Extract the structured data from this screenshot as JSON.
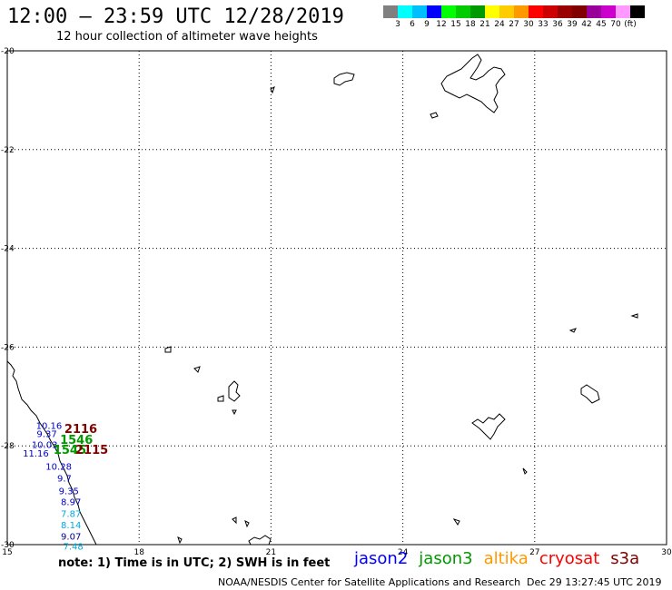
{
  "title": "12:00 – 23:59 UTC 12/28/2019",
  "subtitle": "12 hour collection of altimeter wave heights",
  "colorbar": {
    "colors": [
      "#808080",
      "#00ffff",
      "#00bfff",
      "#0000ff",
      "#00ff00",
      "#00cc00",
      "#009900",
      "#ffff00",
      "#ffcc00",
      "#ff9900",
      "#ff0000",
      "#cc0000",
      "#990000",
      "#800000",
      "#990099",
      "#cc00cc",
      "#ff99ff",
      "#000000"
    ],
    "labels": [
      "3",
      "6",
      "9",
      "12",
      "15",
      "18",
      "21",
      "24",
      "27",
      "30",
      "33",
      "36",
      "39",
      "42",
      "45",
      "70",
      "(ft)"
    ]
  },
  "map": {
    "lon_range": [
      15,
      30
    ],
    "lat_range": [
      -30,
      -20
    ],
    "lon_ticks": [
      "15",
      "18",
      "21",
      "24",
      "27",
      "30"
    ],
    "lat_ticks": [
      "-20",
      "-22",
      "-24",
      "-26",
      "-28",
      "-30"
    ]
  },
  "observations": [
    {
      "value": "10.16",
      "color": "#0000cc",
      "lon": 15.95,
      "lat": -27.66
    },
    {
      "value": "9.37",
      "color": "#0000cc",
      "lon": 15.9,
      "lat": -27.82
    },
    {
      "value": "10.03",
      "color": "#0000cc",
      "lon": 15.85,
      "lat": -28.04
    },
    {
      "value": "11.16",
      "color": "#0000cc",
      "lon": 15.65,
      "lat": -28.22
    },
    {
      "value": "10.28",
      "color": "#0000cc",
      "lon": 16.17,
      "lat": -28.48
    },
    {
      "value": "9.7",
      "color": "#0000cc",
      "lon": 16.3,
      "lat": -28.72
    },
    {
      "value": "9.35",
      "color": "#0000cc",
      "lon": 16.4,
      "lat": -28.98
    },
    {
      "value": "8.97",
      "color": "#0000cc",
      "lon": 16.45,
      "lat": -29.2
    },
    {
      "value": "7.87",
      "color": "#00aadd",
      "lon": 16.45,
      "lat": -29.44
    },
    {
      "value": "8.14",
      "color": "#00aadd",
      "lon": 16.45,
      "lat": -29.67
    },
    {
      "value": "9.07",
      "color": "#000099",
      "lon": 16.45,
      "lat": -29.9
    },
    {
      "value": "7.48",
      "color": "#00aadd",
      "lon": 16.5,
      "lat": -30.1
    }
  ],
  "track_labels": [
    {
      "text": "2116",
      "color": "#800000",
      "lon": 16.3,
      "lat": -27.74
    },
    {
      "text": "1546",
      "color": "#009900",
      "lon": 16.2,
      "lat": -27.96
    },
    {
      "text": "1545",
      "color": "#009900",
      "lon": 16.05,
      "lat": -28.16
    },
    {
      "text": "2115",
      "color": "#800000",
      "lon": 16.55,
      "lat": -28.16
    }
  ],
  "note": "note: 1) Time is in UTC; 2) SWH is in feet",
  "legend": [
    {
      "name": "jason2",
      "color": "#0000ff"
    },
    {
      "name": "jason3",
      "color": "#009900"
    },
    {
      "name": "altika",
      "color": "#ff9900"
    },
    {
      "name": "cryosat",
      "color": "#ff0000"
    },
    {
      "name": "s3a",
      "color": "#800000"
    }
  ],
  "credit": "NOAA/NESDIS Center for Satellite Applications and Research",
  "timestamp": "Dec 29 13:27:45 UTC 2019"
}
